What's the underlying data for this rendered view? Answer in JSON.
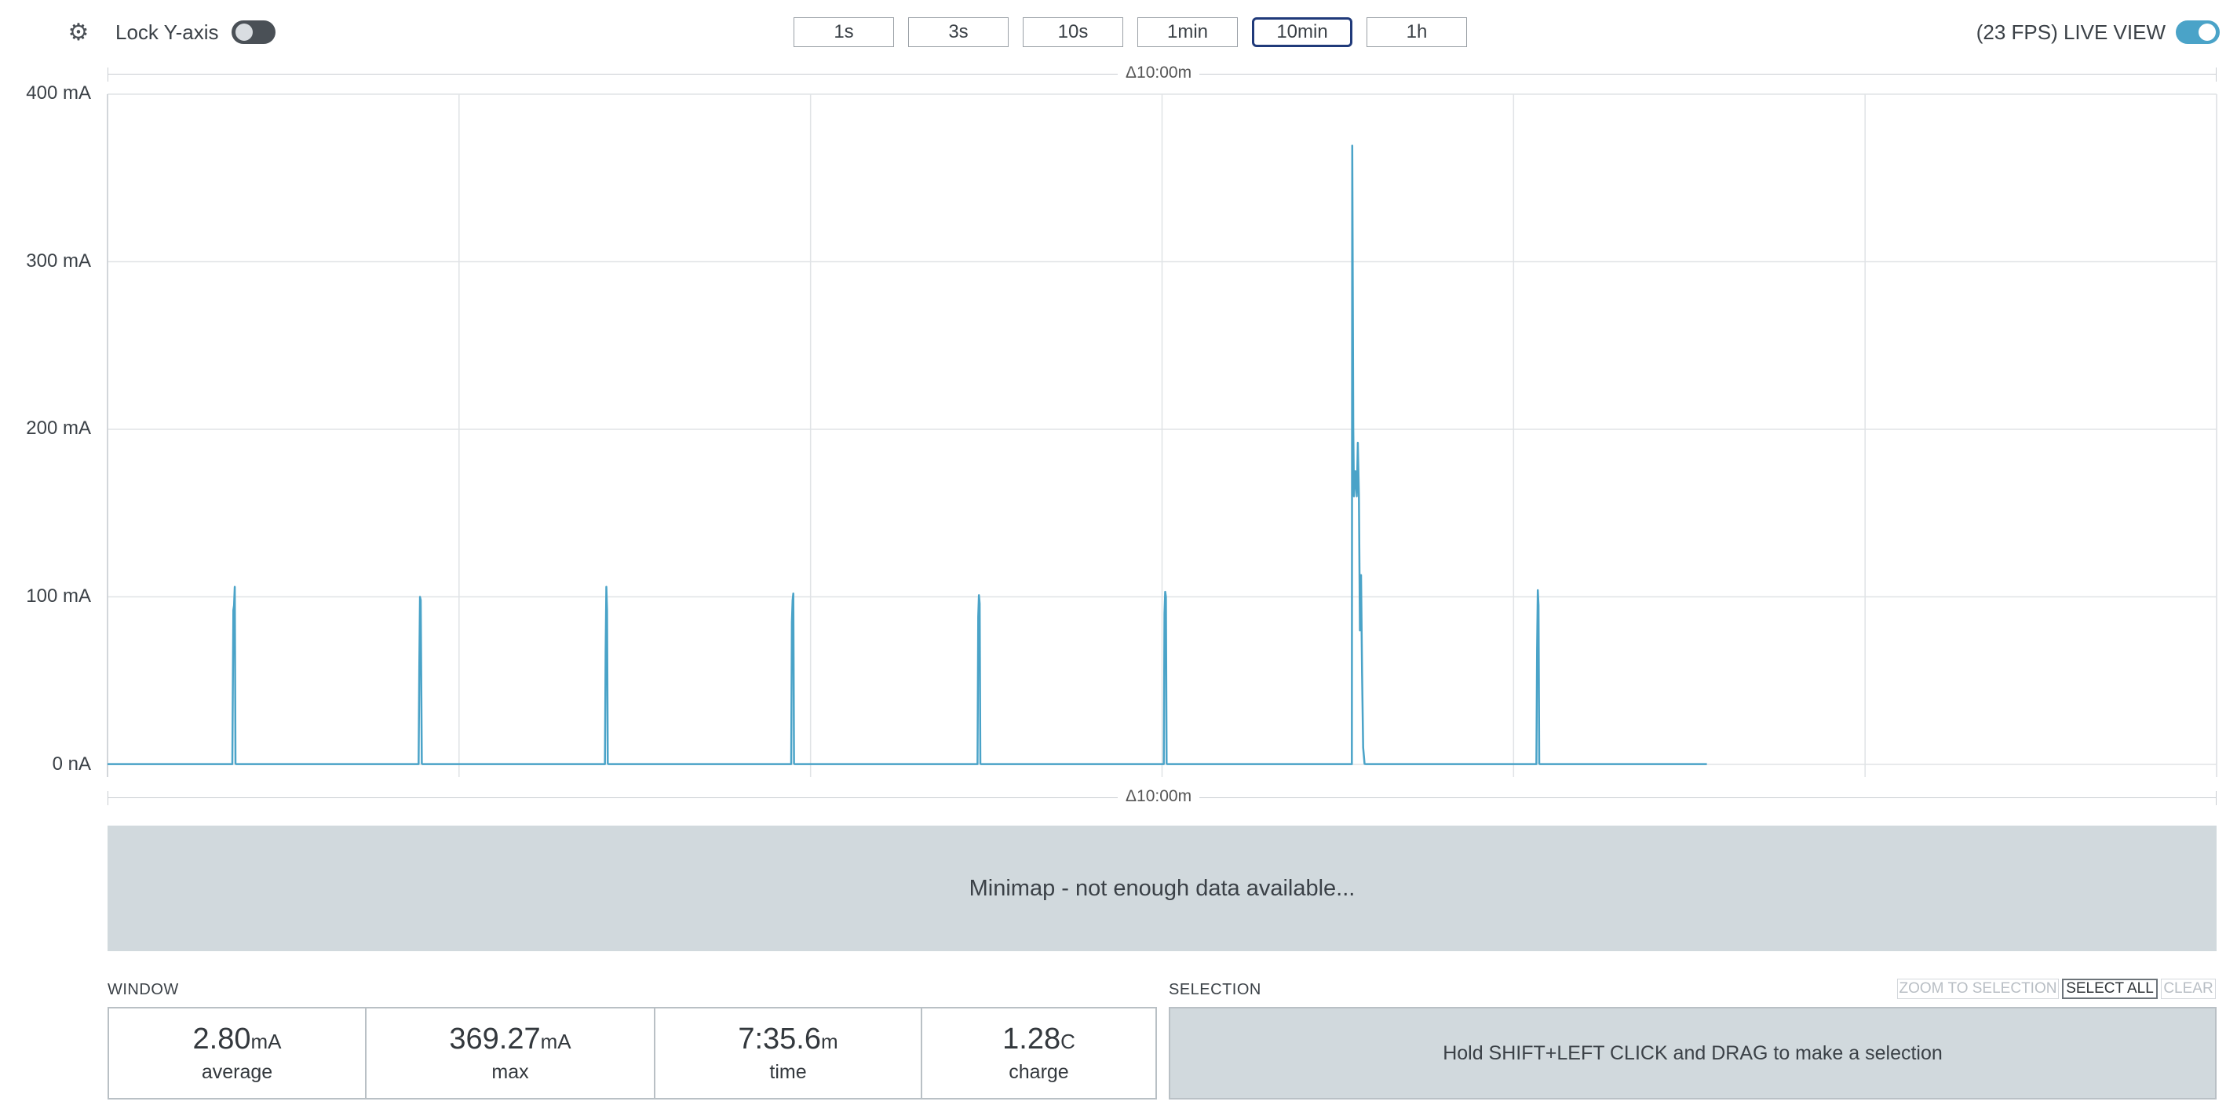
{
  "toolbar": {
    "lock_y_label": "Lock Y-axis",
    "lock_y_on": false,
    "time_buttons": [
      "1s",
      "3s",
      "10s",
      "1min",
      "10min",
      "1h"
    ],
    "active_time": "10min",
    "live_label": "(23 FPS) LIVE VIEW",
    "live_on": true
  },
  "chart": {
    "window_delta_top": "Δ10:00m",
    "window_delta_bottom": "Δ10:00m",
    "y_ticks": [
      "400 mA",
      "300 mA",
      "200 mA",
      "100 mA",
      "0 nA"
    ]
  },
  "chart_data": {
    "type": "line",
    "ylabel": "",
    "xlabel": "",
    "ylim": [
      0,
      400
    ],
    "y_unit": "mA",
    "x_unit": "s",
    "xlim": [
      0,
      600
    ],
    "grid": true,
    "series": [
      {
        "color": "#4aa3c8",
        "points": [
          [
            0,
            0.2
          ],
          [
            35.5,
            0.2
          ],
          [
            35.8,
            92
          ],
          [
            36.0,
            95
          ],
          [
            36.2,
            106
          ],
          [
            36.4,
            0.5
          ],
          [
            36.6,
            0.2
          ],
          [
            88.5,
            0.2
          ],
          [
            88.7,
            58
          ],
          [
            88.9,
            100
          ],
          [
            89.1,
            98
          ],
          [
            89.4,
            0.5
          ],
          [
            89.6,
            0.2
          ],
          [
            141.5,
            0.2
          ],
          [
            141.7,
            68
          ],
          [
            141.9,
            106
          ],
          [
            142.1,
            92
          ],
          [
            142.3,
            0.5
          ],
          [
            142.5,
            0.2
          ],
          [
            194.5,
            0.2
          ],
          [
            194.7,
            85
          ],
          [
            194.9,
            98
          ],
          [
            195.1,
            102
          ],
          [
            195.3,
            0.5
          ],
          [
            195.5,
            0.2
          ],
          [
            247.5,
            0.2
          ],
          [
            247.7,
            88
          ],
          [
            247.9,
            101
          ],
          [
            248.1,
            96
          ],
          [
            248.3,
            0.5
          ],
          [
            248.5,
            0.2
          ],
          [
            300.5,
            0.2
          ],
          [
            300.7,
            90
          ],
          [
            300.9,
            103
          ],
          [
            301.1,
            100
          ],
          [
            301.3,
            0.5
          ],
          [
            301.5,
            0.2
          ],
          [
            354.0,
            0.2
          ],
          [
            354.1,
            369.27
          ],
          [
            354.4,
            200
          ],
          [
            354.6,
            160
          ],
          [
            355.0,
            175
          ],
          [
            355.4,
            160
          ],
          [
            355.7,
            192
          ],
          [
            356.0,
            160
          ],
          [
            356.3,
            80
          ],
          [
            356.6,
            113
          ],
          [
            356.9,
            55
          ],
          [
            357.2,
            10
          ],
          [
            357.6,
            0.3
          ],
          [
            358.0,
            0.2
          ],
          [
            406.5,
            0.2
          ],
          [
            406.7,
            68
          ],
          [
            406.9,
            104
          ],
          [
            407.1,
            95
          ],
          [
            407.3,
            0.5
          ],
          [
            407.5,
            0.2
          ],
          [
            455,
            0.2
          ]
        ]
      }
    ]
  },
  "minimap": {
    "message": "Minimap - not enough data available..."
  },
  "window": {
    "title": "WINDOW",
    "stats": [
      {
        "value": "2.80",
        "unit": "mA",
        "label": "average"
      },
      {
        "value": "369.27",
        "unit": "mA",
        "label": "max"
      },
      {
        "value": "7:35.6",
        "unit": "m",
        "label": "time"
      },
      {
        "value": "1.28",
        "unit": "C",
        "label": "charge"
      }
    ]
  },
  "selection": {
    "title": "SELECTION",
    "zoom_label": "ZOOM TO SELECTION",
    "select_all_label": "SELECT ALL",
    "clear_label": "CLEAR",
    "hint": "Hold SHIFT+LEFT CLICK and DRAG to make a selection"
  },
  "colors": {
    "trace": "#4aa3c8",
    "toggle_on": "#4aa3c8",
    "toggle_off": "#4a5056",
    "active_border": "#203a7a",
    "panel_bg": "#d1d9dd"
  }
}
